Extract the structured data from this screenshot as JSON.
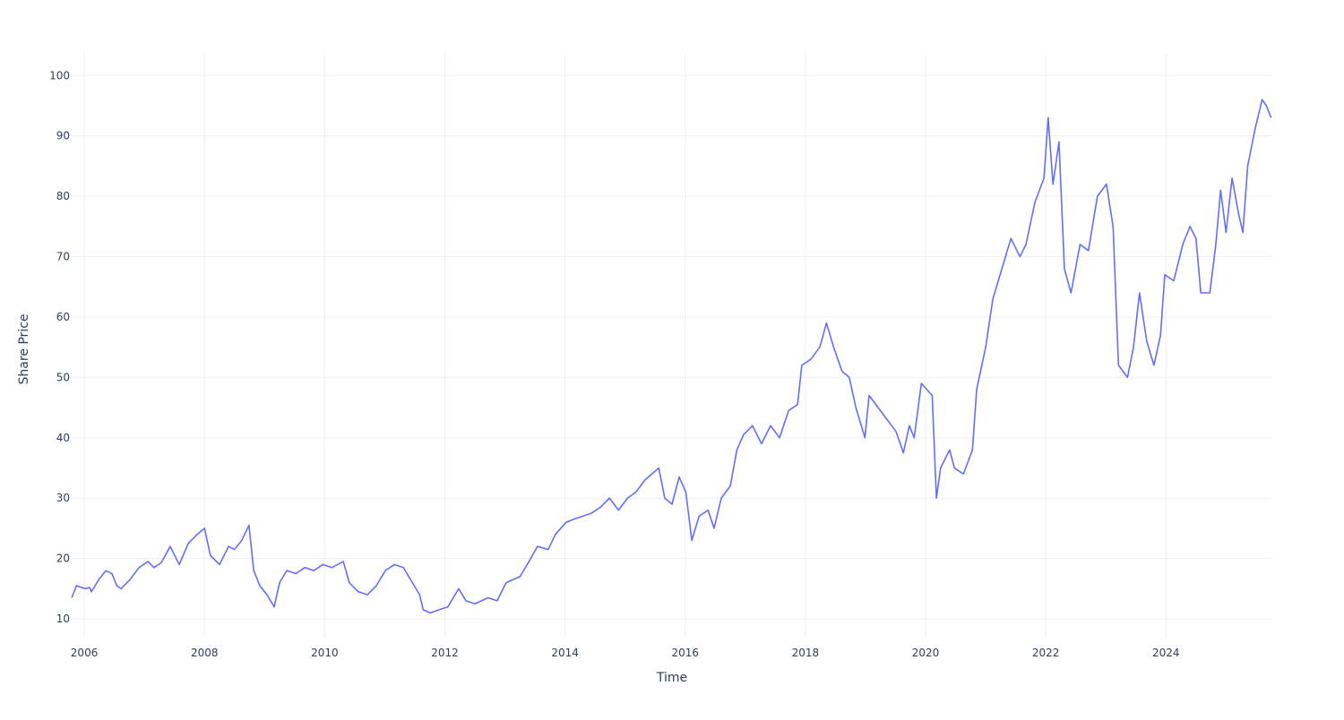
{
  "chart_data": {
    "type": "line",
    "x_label": "Time",
    "y_label": "Share Price",
    "xlim": [
      2005.79,
      2025.77
    ],
    "ylim": [
      6.9,
      103.6
    ],
    "xticks": [
      2006,
      2008,
      2010,
      2012,
      2014,
      2016,
      2018,
      2020,
      2022,
      2024
    ],
    "yticks": [
      10,
      20,
      30,
      40,
      50,
      60,
      70,
      80,
      90,
      100
    ],
    "grid": true,
    "series": [
      {
        "name": "Share Price",
        "color": "#636efa",
        "x": [
          2005.79,
          2005.87,
          2006.01,
          2006.09,
          2006.12,
          2006.24,
          2006.36,
          2006.46,
          2006.54,
          2006.61,
          2006.76,
          2006.91,
          2007.06,
          2007.16,
          2007.28,
          2007.43,
          2007.58,
          2007.73,
          2007.88,
          2008.0,
          2008.1,
          2008.25,
          2008.4,
          2008.5,
          2008.62,
          2008.74,
          2008.82,
          2008.92,
          2009.04,
          2009.16,
          2009.25,
          2009.37,
          2009.52,
          2009.67,
          2009.82,
          2009.97,
          2010.12,
          2010.31,
          2010.41,
          2010.56,
          2010.71,
          2010.86,
          2011.01,
          2011.16,
          2011.31,
          2011.46,
          2011.58,
          2011.64,
          2011.76,
          2011.9,
          2012.05,
          2012.23,
          2012.35,
          2012.5,
          2012.72,
          2012.87,
          2013.02,
          2013.25,
          2013.4,
          2013.54,
          2013.72,
          2013.84,
          2014.02,
          2014.14,
          2014.29,
          2014.44,
          2014.59,
          2014.74,
          2014.89,
          2015.04,
          2015.18,
          2015.33,
          2015.56,
          2015.66,
          2015.78,
          2015.9,
          2016.01,
          2016.11,
          2016.23,
          2016.38,
          2016.48,
          2016.6,
          2016.75,
          2016.86,
          2016.97,
          2017.12,
          2017.27,
          2017.42,
          2017.57,
          2017.72,
          2017.87,
          2017.94,
          2018.09,
          2018.24,
          2018.35,
          2018.47,
          2018.61,
          2018.73,
          2018.84,
          2018.99,
          2019.06,
          2019.21,
          2019.36,
          2019.51,
          2019.63,
          2019.73,
          2019.81,
          2019.93,
          2020.11,
          2020.18,
          2020.25,
          2020.4,
          2020.48,
          2020.63,
          2020.78,
          2020.85,
          2021.0,
          2021.12,
          2021.27,
          2021.42,
          2021.57,
          2021.67,
          2021.82,
          2021.97,
          2022.04,
          2022.12,
          2022.22,
          2022.31,
          2022.42,
          2022.57,
          2022.71,
          2022.86,
          2023.01,
          2023.12,
          2023.21,
          2023.36,
          2023.46,
          2023.56,
          2023.68,
          2023.8,
          2023.91,
          2023.98,
          2024.13,
          2024.28,
          2024.4,
          2024.5,
          2024.58,
          2024.73,
          2024.83,
          2024.91,
          2025.0,
          2025.1,
          2025.21,
          2025.28,
          2025.36,
          2025.48,
          2025.6,
          2025.67,
          2025.75
        ],
        "values": [
          13.5,
          15.5,
          15,
          15.2,
          14.5,
          16.5,
          18,
          17.5,
          15.5,
          15,
          16.5,
          18.5,
          19.5,
          18.5,
          19.3,
          22,
          19,
          22.5,
          24,
          25,
          20.5,
          19,
          22,
          21.5,
          23,
          25.5,
          18,
          15.5,
          14,
          12,
          16,
          18,
          17.5,
          18.5,
          18,
          19,
          18.5,
          19.5,
          16,
          14.5,
          14,
          15.5,
          18,
          19,
          18.5,
          16,
          14,
          11.5,
          11,
          11.5,
          12,
          15,
          13,
          12.5,
          13.5,
          13,
          16,
          17,
          19.5,
          22,
          21.5,
          24,
          26,
          26.5,
          27,
          27.5,
          28.5,
          30,
          28,
          30,
          31,
          33,
          35,
          30,
          29,
          33.5,
          31,
          23,
          27,
          28,
          25,
          30,
          32,
          38,
          40.5,
          42,
          39,
          42,
          40,
          44.5,
          45.5,
          52,
          53,
          55,
          59,
          55,
          51,
          50,
          45,
          40,
          47,
          45,
          43,
          41,
          37.5,
          42,
          40,
          49,
          47,
          30,
          35,
          38,
          35,
          34,
          38,
          48,
          55,
          63,
          68,
          73,
          70,
          72,
          79,
          83,
          93,
          82,
          89,
          68,
          64,
          72,
          71,
          80,
          82,
          75,
          52,
          50,
          55,
          64,
          56,
          52,
          57,
          67,
          66,
          72,
          75,
          73,
          64,
          64,
          72,
          81,
          74,
          83,
          77,
          74,
          85,
          91,
          96,
          95,
          93
        ]
      }
    ]
  }
}
